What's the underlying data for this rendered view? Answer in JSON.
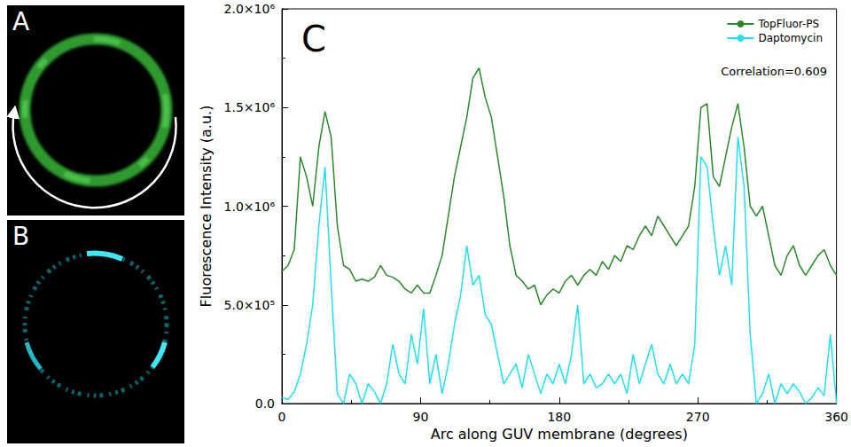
{
  "image_panels": [
    {
      "label": "A"
    },
    {
      "label": "B"
    }
  ],
  "chart_data": {
    "type": "line",
    "title": "C",
    "x_label": "Arc along GUV membrane (degrees)",
    "y_label": "Fluorescence Intensity (a.u.)",
    "annotations": [
      "Correlation=0.609"
    ],
    "legend": "upper right",
    "grid": false,
    "xlim": [
      0,
      360
    ],
    "xticks": [
      0,
      90,
      180,
      270,
      360
    ],
    "ylim": [
      0,
      2000000
    ],
    "yticks": [
      {
        "value": 0,
        "label": "0.0"
      },
      {
        "value": 500000,
        "label": "5.0×10⁵"
      },
      {
        "value": 1000000,
        "label": "1.0×10⁶"
      },
      {
        "value": 1500000,
        "label": "1.5×10⁶"
      },
      {
        "value": 2000000,
        "label": "2.0×10⁶"
      }
    ],
    "x": [
      0,
      4,
      8,
      12,
      16,
      20,
      24,
      28,
      32,
      36,
      40,
      44,
      48,
      52,
      56,
      60,
      64,
      68,
      72,
      76,
      80,
      84,
      88,
      92,
      96,
      100,
      104,
      108,
      112,
      116,
      120,
      124,
      128,
      132,
      136,
      140,
      144,
      148,
      152,
      156,
      160,
      164,
      168,
      172,
      176,
      180,
      184,
      188,
      192,
      196,
      200,
      204,
      208,
      212,
      216,
      220,
      224,
      228,
      232,
      236,
      240,
      244,
      248,
      252,
      256,
      260,
      264,
      268,
      272,
      276,
      280,
      284,
      288,
      292,
      296,
      300,
      304,
      308,
      312,
      316,
      320,
      324,
      328,
      332,
      336,
      340,
      344,
      348,
      352,
      356,
      360
    ],
    "series": [
      {
        "name": "TopFluor-PS",
        "color": "#2a8a2a",
        "values": [
          670000,
          700000,
          780000,
          1250000,
          1150000,
          1000000,
          1300000,
          1480000,
          1350000,
          900000,
          700000,
          680000,
          620000,
          630000,
          620000,
          640000,
          700000,
          650000,
          640000,
          620000,
          580000,
          560000,
          600000,
          560000,
          560000,
          650000,
          750000,
          950000,
          1150000,
          1300000,
          1450000,
          1650000,
          1700000,
          1550000,
          1450000,
          1250000,
          1050000,
          800000,
          650000,
          620000,
          580000,
          600000,
          500000,
          550000,
          580000,
          560000,
          620000,
          650000,
          600000,
          650000,
          680000,
          650000,
          720000,
          680000,
          750000,
          720000,
          800000,
          780000,
          850000,
          900000,
          850000,
          950000,
          900000,
          850000,
          800000,
          850000,
          900000,
          1100000,
          1500000,
          1520000,
          1150000,
          1100000,
          1250000,
          1400000,
          1520000,
          1300000,
          1000000,
          950000,
          1000000,
          850000,
          700000,
          650000,
          750000,
          800000,
          700000,
          650000,
          700000,
          750000,
          780000,
          700000,
          650000
        ]
      },
      {
        "name": "Daptomycin",
        "color": "#1fe0f0",
        "values": [
          30000,
          20000,
          60000,
          150000,
          300000,
          500000,
          900000,
          1200000,
          600000,
          50000,
          0,
          150000,
          100000,
          0,
          100000,
          60000,
          0,
          100000,
          300000,
          150000,
          100000,
          350000,
          200000,
          480000,
          100000,
          250000,
          50000,
          200000,
          400000,
          550000,
          800000,
          600000,
          650000,
          450000,
          400000,
          250000,
          100000,
          150000,
          200000,
          80000,
          250000,
          150000,
          50000,
          150000,
          100000,
          200000,
          100000,
          250000,
          500000,
          100000,
          150000,
          80000,
          100000,
          150000,
          100000,
          150000,
          50000,
          250000,
          100000,
          200000,
          300000,
          150000,
          100000,
          200000,
          100000,
          150000,
          100000,
          300000,
          1250000,
          1200000,
          900000,
          650000,
          800000,
          600000,
          1350000,
          1100000,
          350000,
          0,
          50000,
          150000,
          0,
          100000,
          50000,
          100000,
          60000,
          0,
          30000,
          80000,
          40000,
          350000,
          0
        ]
      }
    ]
  }
}
